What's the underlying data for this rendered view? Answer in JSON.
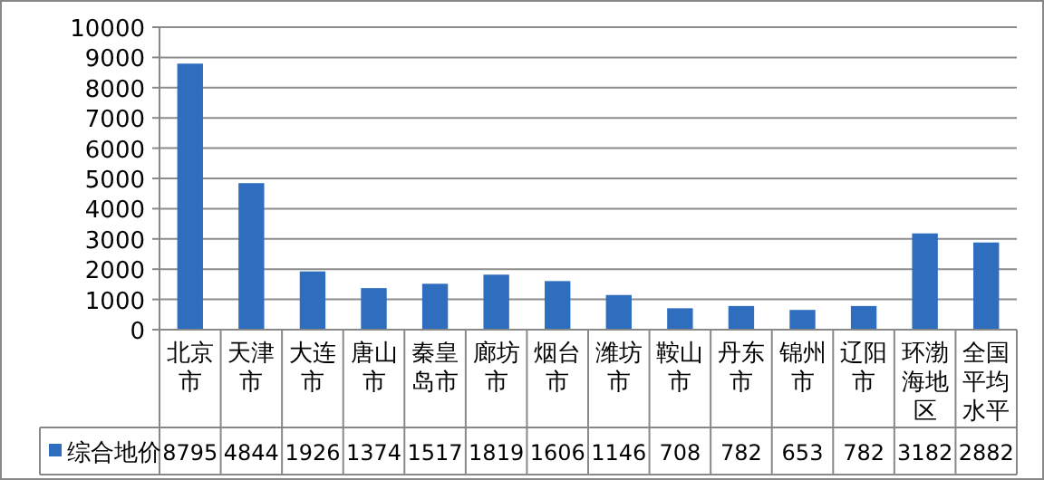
{
  "chart_data": {
    "type": "bar",
    "categories": [
      "北京市",
      "天津市",
      "大连市",
      "唐山市",
      "秦皇岛市",
      "廊坊市",
      "烟台市",
      "潍坊市",
      "鞍山市",
      "丹东市",
      "锦州市",
      "辽阳市",
      "环渤海地区",
      "全国平均水平"
    ],
    "series": [
      {
        "name": "综合地价",
        "color": "#2f6ebf",
        "values": [
          8795,
          4844,
          1926,
          1374,
          1517,
          1819,
          1606,
          1146,
          708,
          782,
          653,
          782,
          3182,
          2882
        ]
      }
    ],
    "ylim": [
      0,
      10000
    ],
    "yticks": [
      0,
      1000,
      2000,
      3000,
      4000,
      5000,
      6000,
      7000,
      8000,
      9000,
      10000
    ],
    "grid": "y",
    "legend": "bottom left",
    "data_labels": true
  }
}
